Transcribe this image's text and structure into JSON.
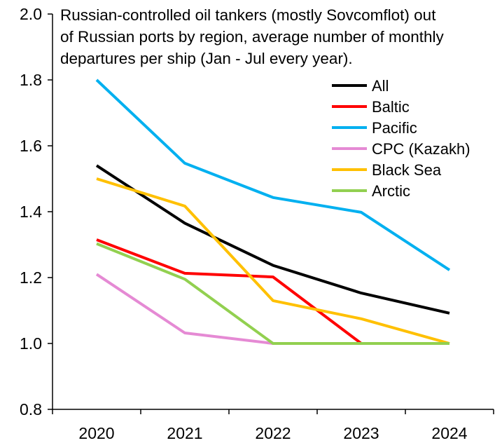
{
  "chart_data": {
    "type": "line",
    "title": [
      "Russian-controlled oil tankers (mostly Sovcomflot) out",
      "of Russian ports by region, average number of monthly",
      "departures per ship (Jan - Jul every year)."
    ],
    "xlabel": "",
    "ylabel": "",
    "categories": [
      "2020",
      "2021",
      "2022",
      "2023",
      "2024"
    ],
    "ylim": [
      0.8,
      2.0
    ],
    "yticks": [
      "0.8",
      "1.0",
      "1.2",
      "1.4",
      "1.6",
      "1.8",
      "2.0"
    ],
    "ytick_values": [
      0.8,
      1.0,
      1.2,
      1.4,
      1.6,
      1.8,
      2.0
    ],
    "grid": false,
    "legend_placement": "top-right",
    "series": [
      {
        "name": "All",
        "color": "#000000",
        "values": [
          1.54,
          1.365,
          1.237,
          1.153,
          1.092
        ]
      },
      {
        "name": "Baltic",
        "color": "#ff0000",
        "values": [
          1.315,
          1.213,
          1.202,
          1.0,
          null
        ]
      },
      {
        "name": "Pacific",
        "color": "#00b0f0",
        "values": [
          1.8,
          1.547,
          1.443,
          1.398,
          1.223
        ]
      },
      {
        "name": "CPC (Kazakh)",
        "color": "#e58ad4",
        "values": [
          1.21,
          1.032,
          1.0,
          1.0,
          1.0
        ]
      },
      {
        "name": "Black Sea",
        "color": "#ffc000",
        "values": [
          1.5,
          1.417,
          1.13,
          1.075,
          1.0
        ]
      },
      {
        "name": "Arctic",
        "color": "#92d050",
        "values": [
          1.303,
          1.195,
          1.0,
          1.0,
          1.0
        ]
      }
    ]
  }
}
